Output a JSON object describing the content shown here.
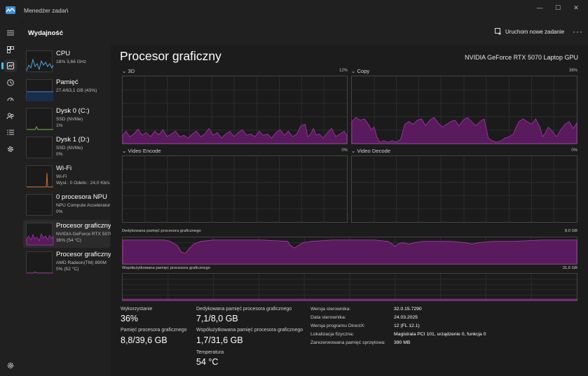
{
  "window": {
    "title": "Menedżer zadań",
    "minimize": "—",
    "maximize": "☐",
    "close": "✕"
  },
  "header": {
    "page_title": "Wydajność",
    "new_task": "Uruchom nowe zadanie",
    "more": "···"
  },
  "devices": [
    {
      "name": "CPU",
      "sub1": "18% 3,66 GHz",
      "sub2": "",
      "sub3": "",
      "icon": "cpu"
    },
    {
      "name": "Pamięć",
      "sub1": "27,4/63,1 GB (43%)",
      "sub2": "",
      "sub3": "",
      "icon": "memory"
    },
    {
      "name": "Dysk 0 (C:)",
      "sub1": "SSD (NVMe)",
      "sub2": "1%",
      "sub3": "",
      "icon": "disk"
    },
    {
      "name": "Dysk 1 (D:)",
      "sub1": "SSD (NVMe)",
      "sub2": "0%",
      "sub3": "",
      "icon": "disk"
    },
    {
      "name": "Wi-Fi",
      "sub1": "Wi-Fi",
      "sub2": "Wysł.: 0 Odebr.: 24,0 Kb/s",
      "sub3": "",
      "icon": "wifi"
    },
    {
      "name": "0 procesora NPU",
      "sub1": "NPU Compute Accelerator",
      "sub2": "0%",
      "sub3": "",
      "icon": "npu"
    },
    {
      "name": "Procesor graficzny",
      "sub1": "NVIDIA GeForce RTX 5070",
      "sub2": "36% (54 °C)",
      "sub3": "",
      "icon": "gpu"
    },
    {
      "name": "Procesor graficzny",
      "sub1": "AMD Radeon(TM) 890M",
      "sub2": "0% (52 °C)",
      "sub3": "",
      "icon": "gpu"
    }
  ],
  "main": {
    "title": "Procesor graficzny",
    "model": "NVIDIA GeForce RTX 5070 Laptop GPU",
    "graphs": {
      "g3d": {
        "label": "3D",
        "pct": "12%"
      },
      "copy": {
        "label": "Copy",
        "pct": "36%"
      },
      "encode": {
        "label": "Video Encode",
        "pct": "0%"
      },
      "decode": {
        "label": "Video Decode",
        "pct": "0%"
      },
      "dedicated": {
        "label": "Dedykowana pamięć procesora graficznego",
        "max": "8,0 GB"
      },
      "shared": {
        "label": "Współużytkowana pamięć procesora graficznego",
        "max": "31,6 GB"
      }
    },
    "stats": {
      "util_label": "Wykorzystanie",
      "util_val": "36%",
      "gpu_mem_label": "Pamięć procesora graficznego",
      "gpu_mem_val": "8,8/39,6 GB",
      "ded_label": "Dedykowana pamięć procesora graficznego",
      "ded_val": "7,1/8,0 GB",
      "shared_label": "Współużytkowana pamięć procesora graficznego",
      "shared_val": "1,7/31,6 GB",
      "temp_label": "Temperatura",
      "temp_val": "54 °C"
    },
    "info": [
      {
        "label": "Wersja sterownika:",
        "value": "32.0.15.7290"
      },
      {
        "label": "Data sterownika:",
        "value": "24.03.2025"
      },
      {
        "label": "Wersja programu DirectX:",
        "value": "12 (FL 12.1)"
      },
      {
        "label": "Lokalizacja fizyczna:",
        "value": "Magistrala PCI 101, urządzenie 0, funkcja 0"
      },
      {
        "label": "Zarezerwowana pamięć sprzętowa:",
        "value": "390 MB"
      }
    ]
  },
  "colors": {
    "gpu_fill": "#5a1a5e",
    "gpu_line": "#a23aa6",
    "cpu_line": "#4ca8d8",
    "mem_fill": "#1b2b4a",
    "disk_line": "#6aa842",
    "wifi_line": "#c06a2c"
  }
}
